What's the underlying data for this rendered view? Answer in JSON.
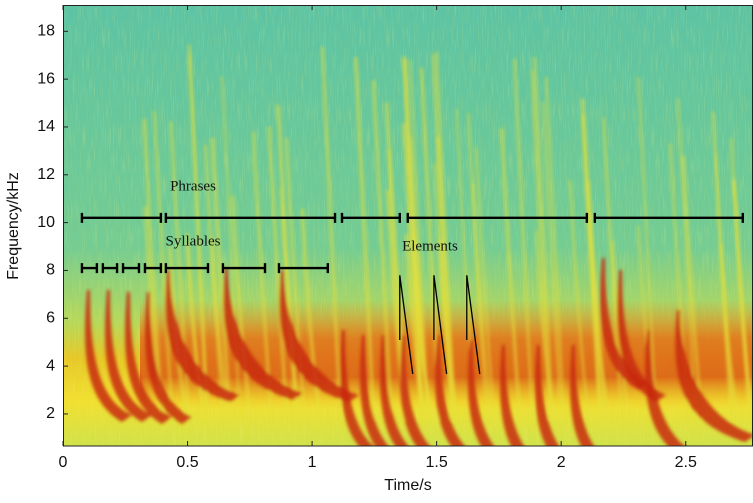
{
  "chart_data": {
    "type": "spectrogram",
    "x_label": "Time/s",
    "y_label": "Frequency/kHz",
    "xlim": [
      0,
      2.77
    ],
    "ylim": [
      0.66,
      19.1
    ],
    "xticks": [
      0,
      0.5,
      1,
      1.5,
      2,
      2.5
    ],
    "yticks": [
      2,
      4,
      6,
      8,
      10,
      12,
      14,
      16,
      18
    ],
    "annotations": [
      {
        "label": "Phrases",
        "y": 10.2,
        "segments": [
          [
            0.076,
            0.393
          ],
          [
            0.413,
            1.092
          ],
          [
            1.12,
            1.352
          ],
          [
            1.384,
            2.103
          ],
          [
            2.135,
            2.729
          ]
        ]
      },
      {
        "label": "Syllables",
        "y": 8.1,
        "segments": [
          [
            0.076,
            0.136
          ],
          [
            0.16,
            0.217
          ],
          [
            0.241,
            0.305
          ],
          [
            0.329,
            0.393
          ],
          [
            0.413,
            0.582
          ],
          [
            0.642,
            0.811
          ],
          [
            0.867,
            1.063
          ]
        ]
      }
    ],
    "elements_label": "Elements",
    "elements": [
      {
        "x": [
          1.352,
          1.352,
          1.404
        ],
        "y": [
          5.09,
          7.8,
          3.67
        ]
      },
      {
        "x": [
          1.489,
          1.489,
          1.54
        ],
        "y": [
          5.09,
          7.8,
          3.67
        ]
      },
      {
        "x": [
          1.621,
          1.621,
          1.673
        ],
        "y": [
          5.09,
          7.8,
          3.67
        ]
      }
    ]
  }
}
